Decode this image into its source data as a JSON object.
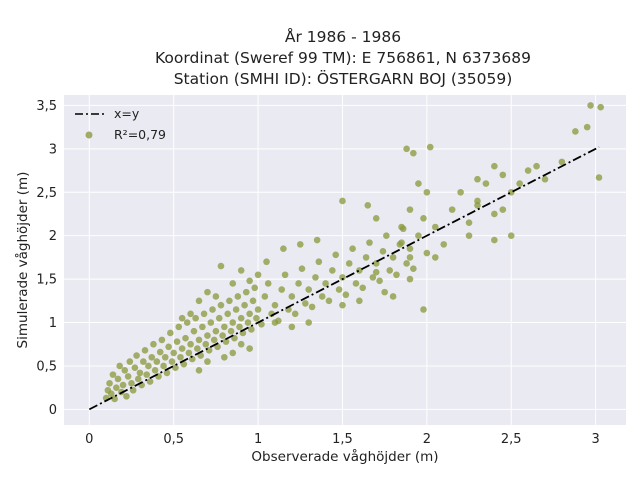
{
  "chart_data": {
    "type": "scatter",
    "title_lines": [
      "År 1986 - 1986",
      "Koordinat (Sweref 99 TM): E 756861, N 6373689",
      "Station (SMHI ID): ÖSTERGARN BOJ (35059)"
    ],
    "xlabel": "Observerade våghöjder (m)",
    "ylabel": "Simulerade våghöjder (m)",
    "xlim": [
      -0.15,
      3.18
    ],
    "ylim": [
      -0.18,
      3.62
    ],
    "xticks": [
      0,
      0.5,
      1,
      1.5,
      2,
      2.5,
      3
    ],
    "xtick_labels": [
      "0",
      "0,5",
      "1",
      "1,5",
      "2",
      "2,5",
      "3"
    ],
    "yticks": [
      0,
      0.5,
      1,
      1.5,
      2,
      2.5,
      3,
      3.5
    ],
    "ytick_labels": [
      "0",
      "0,5",
      "1",
      "1,5",
      "2",
      "2,5",
      "3",
      "3,5"
    ],
    "grid": true,
    "legend_position": "top-left",
    "series": [
      {
        "name": "x=y",
        "kind": "line",
        "x": [
          0,
          3.02
        ],
        "y": [
          0,
          3.02
        ],
        "color": "#000000",
        "dash": "dash-dot"
      },
      {
        "name": "R²=0,79",
        "kind": "scatter",
        "color": "#8c9a40",
        "points": [
          [
            0.1,
            0.13
          ],
          [
            0.11,
            0.22
          ],
          [
            0.12,
            0.3
          ],
          [
            0.13,
            0.18
          ],
          [
            0.14,
            0.4
          ],
          [
            0.15,
            0.12
          ],
          [
            0.16,
            0.25
          ],
          [
            0.17,
            0.35
          ],
          [
            0.18,
            0.5
          ],
          [
            0.19,
            0.2
          ],
          [
            0.2,
            0.28
          ],
          [
            0.21,
            0.45
          ],
          [
            0.22,
            0.15
          ],
          [
            0.23,
            0.38
          ],
          [
            0.24,
            0.55
          ],
          [
            0.25,
            0.3
          ],
          [
            0.26,
            0.22
          ],
          [
            0.27,
            0.48
          ],
          [
            0.28,
            0.62
          ],
          [
            0.29,
            0.35
          ],
          [
            0.3,
            0.42
          ],
          [
            0.31,
            0.28
          ],
          [
            0.32,
            0.55
          ],
          [
            0.33,
            0.68
          ],
          [
            0.34,
            0.4
          ],
          [
            0.35,
            0.5
          ],
          [
            0.36,
            0.32
          ],
          [
            0.37,
            0.6
          ],
          [
            0.38,
            0.75
          ],
          [
            0.39,
            0.45
          ],
          [
            0.4,
            0.55
          ],
          [
            0.41,
            0.38
          ],
          [
            0.42,
            0.66
          ],
          [
            0.43,
            0.8
          ],
          [
            0.44,
            0.5
          ],
          [
            0.45,
            0.6
          ],
          [
            0.46,
            0.42
          ],
          [
            0.47,
            0.72
          ],
          [
            0.48,
            0.88
          ],
          [
            0.49,
            0.55
          ],
          [
            0.5,
            0.65
          ],
          [
            0.51,
            0.48
          ],
          [
            0.52,
            0.78
          ],
          [
            0.53,
            0.95
          ],
          [
            0.54,
            0.6
          ],
          [
            0.55,
            0.7
          ],
          [
            0.56,
            0.52
          ],
          [
            0.57,
            0.82
          ],
          [
            0.58,
            1.0
          ],
          [
            0.59,
            0.65
          ],
          [
            0.6,
            0.75
          ],
          [
            0.61,
            0.58
          ],
          [
            0.62,
            0.9
          ],
          [
            0.63,
            1.05
          ],
          [
            0.64,
            0.7
          ],
          [
            0.65,
            0.8
          ],
          [
            0.66,
            0.62
          ],
          [
            0.67,
            0.95
          ],
          [
            0.68,
            1.1
          ],
          [
            0.69,
            0.75
          ],
          [
            0.7,
            0.85
          ],
          [
            0.71,
            0.68
          ],
          [
            0.72,
            1.0
          ],
          [
            0.73,
            1.15
          ],
          [
            0.74,
            0.8
          ],
          [
            0.75,
            0.9
          ],
          [
            0.76,
            0.72
          ],
          [
            0.77,
            1.05
          ],
          [
            0.78,
            1.2
          ],
          [
            0.79,
            0.85
          ],
          [
            0.8,
            0.95
          ],
          [
            0.81,
            0.78
          ],
          [
            0.82,
            1.1
          ],
          [
            0.83,
            1.25
          ],
          [
            0.84,
            0.9
          ],
          [
            0.85,
            1.0
          ],
          [
            0.86,
            0.82
          ],
          [
            0.87,
            1.15
          ],
          [
            0.88,
            1.3
          ],
          [
            0.89,
            0.95
          ],
          [
            0.9,
            1.05
          ],
          [
            0.91,
            0.88
          ],
          [
            0.92,
            1.2
          ],
          [
            0.93,
            1.35
          ],
          [
            0.94,
            1.0
          ],
          [
            0.95,
            1.1
          ],
          [
            0.96,
            0.92
          ],
          [
            0.97,
            1.25
          ],
          [
            0.98,
            1.4
          ],
          [
            0.99,
            1.05
          ],
          [
            1.0,
            1.15
          ],
          [
            1.02,
            0.98
          ],
          [
            1.04,
            1.3
          ],
          [
            1.06,
            1.45
          ],
          [
            1.08,
            1.1
          ],
          [
            1.1,
            1.2
          ],
          [
            1.12,
            1.02
          ],
          [
            1.14,
            1.38
          ],
          [
            1.16,
            1.55
          ],
          [
            1.18,
            1.15
          ],
          [
            1.2,
            1.3
          ],
          [
            1.22,
            1.1
          ],
          [
            1.24,
            1.45
          ],
          [
            1.26,
            1.62
          ],
          [
            1.28,
            1.22
          ],
          [
            1.3,
            1.38
          ],
          [
            1.32,
            1.18
          ],
          [
            1.34,
            1.52
          ],
          [
            1.36,
            1.7
          ],
          [
            1.38,
            1.3
          ],
          [
            1.4,
            1.45
          ],
          [
            1.42,
            1.25
          ],
          [
            1.44,
            1.6
          ],
          [
            1.46,
            1.78
          ],
          [
            1.48,
            1.38
          ],
          [
            1.5,
            1.52
          ],
          [
            1.52,
            1.32
          ],
          [
            1.54,
            1.68
          ],
          [
            1.56,
            1.85
          ],
          [
            1.58,
            1.45
          ],
          [
            1.6,
            1.6
          ],
          [
            1.62,
            1.4
          ],
          [
            1.64,
            1.75
          ],
          [
            1.66,
            1.92
          ],
          [
            1.68,
            1.52
          ],
          [
            1.7,
            1.68
          ],
          [
            1.72,
            1.48
          ],
          [
            1.74,
            1.82
          ],
          [
            1.76,
            2.0
          ],
          [
            1.78,
            1.6
          ],
          [
            1.8,
            1.75
          ],
          [
            1.82,
            1.55
          ],
          [
            1.84,
            1.9
          ],
          [
            1.86,
            2.08
          ],
          [
            1.88,
            1.68
          ],
          [
            1.9,
            1.85
          ],
          [
            1.92,
            1.62
          ],
          [
            1.95,
            2.0
          ],
          [
            1.98,
            2.2
          ],
          [
            2.0,
            1.8
          ],
          [
            2.05,
            2.1
          ],
          [
            2.1,
            1.9
          ],
          [
            2.15,
            2.3
          ],
          [
            2.2,
            2.5
          ],
          [
            2.25,
            2.15
          ],
          [
            2.3,
            2.4
          ],
          [
            2.35,
            2.6
          ],
          [
            2.4,
            2.25
          ],
          [
            2.45,
            2.7
          ],
          [
            2.5,
            2.5
          ],
          [
            2.55,
            2.6
          ],
          [
            2.6,
            2.75
          ],
          [
            2.65,
            2.8
          ],
          [
            2.7,
            2.65
          ],
          [
            2.8,
            2.85
          ],
          [
            2.88,
            3.2
          ],
          [
            2.95,
            3.25
          ],
          [
            2.97,
            3.5
          ],
          [
            3.02,
            2.67
          ],
          [
            3.03,
            3.48
          ],
          [
            0.55,
            1.05
          ],
          [
            0.6,
            1.1
          ],
          [
            0.75,
            1.3
          ],
          [
            0.85,
            1.45
          ],
          [
            1.1,
            1.0
          ],
          [
            1.2,
            0.95
          ],
          [
            1.3,
            1.0
          ],
          [
            1.5,
            1.2
          ],
          [
            1.6,
            1.25
          ],
          [
            1.75,
            1.35
          ],
          [
            1.8,
            1.3
          ],
          [
            1.9,
            1.5
          ],
          [
            1.98,
            1.15
          ],
          [
            2.05,
            1.75
          ],
          [
            1.7,
            2.2
          ],
          [
            1.65,
            2.35
          ],
          [
            1.5,
            2.4
          ],
          [
            1.35,
            1.95
          ],
          [
            1.25,
            1.9
          ],
          [
            1.15,
            1.85
          ],
          [
            2.3,
            2.35
          ],
          [
            2.25,
            2.0
          ],
          [
            2.4,
            1.95
          ],
          [
            2.45,
            2.3
          ],
          [
            2.5,
            2.0
          ],
          [
            2.3,
            2.65
          ],
          [
            2.4,
            2.8
          ],
          [
            2.0,
            2.5
          ],
          [
            1.95,
            2.6
          ],
          [
            1.88,
            3.0
          ],
          [
            2.02,
            3.02
          ],
          [
            1.92,
            2.95
          ],
          [
            1.9,
            2.3
          ],
          [
            1.85,
            2.1
          ],
          [
            0.9,
            0.75
          ],
          [
            0.95,
            0.7
          ],
          [
            0.7,
            0.55
          ],
          [
            0.65,
            0.45
          ],
          [
            0.8,
            0.6
          ],
          [
            0.85,
            0.65
          ],
          [
            0.9,
            1.6
          ],
          [
            0.78,
            1.65
          ],
          [
            0.7,
            1.35
          ],
          [
            0.65,
            1.25
          ],
          [
            1.05,
            1.7
          ],
          [
            1.0,
            1.55
          ],
          [
            0.95,
            1.48
          ],
          [
            1.9,
            1.75
          ],
          [
            1.85,
            1.92
          ],
          [
            1.7,
            1.58
          ]
        ]
      }
    ]
  }
}
